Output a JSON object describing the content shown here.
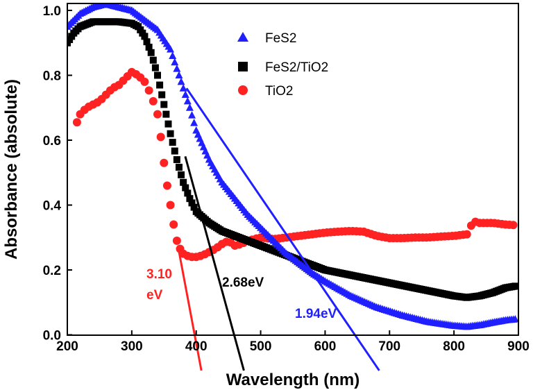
{
  "chart_data": {
    "type": "scatter",
    "xlabel": "Wavelength (nm)",
    "ylabel": "Absorbance (absolute)",
    "xlim": [
      200,
      900
    ],
    "ylim": [
      0.0,
      1.02
    ],
    "xticks": [
      "200",
      "300",
      "400",
      "500",
      "600",
      "700",
      "800",
      "900"
    ],
    "yticks": [
      "0.0",
      "0.2",
      "0.4",
      "0.6",
      "0.8",
      "1.0"
    ],
    "legend_position": "top-center",
    "series": [
      {
        "name": "FeS2",
        "color": "#1f1fff",
        "marker": "triangle",
        "points": [
          [
            200,
            0.95
          ],
          [
            220,
            0.99
          ],
          [
            240,
            1.01
          ],
          [
            260,
            1.02
          ],
          [
            280,
            1.01
          ],
          [
            300,
            1.0
          ],
          [
            320,
            0.97
          ],
          [
            340,
            0.94
          ],
          [
            360,
            0.88
          ],
          [
            370,
            0.82
          ],
          [
            380,
            0.76
          ],
          [
            390,
            0.7
          ],
          [
            400,
            0.63
          ],
          [
            420,
            0.54
          ],
          [
            440,
            0.47
          ],
          [
            460,
            0.42
          ],
          [
            480,
            0.37
          ],
          [
            500,
            0.33
          ],
          [
            520,
            0.29
          ],
          [
            540,
            0.25
          ],
          [
            560,
            0.22
          ],
          [
            580,
            0.19
          ],
          [
            600,
            0.165
          ],
          [
            640,
            0.12
          ],
          [
            680,
            0.085
          ],
          [
            720,
            0.06
          ],
          [
            760,
            0.04
          ],
          [
            800,
            0.028
          ],
          [
            820,
            0.025
          ],
          [
            840,
            0.03
          ],
          [
            860,
            0.038
          ],
          [
            880,
            0.045
          ],
          [
            895,
            0.048
          ]
        ]
      },
      {
        "name": "FeS2/TiO2",
        "color": "#000000",
        "marker": "square",
        "points": [
          [
            200,
            0.9
          ],
          [
            210,
            0.93
          ],
          [
            220,
            0.95
          ],
          [
            240,
            0.965
          ],
          [
            260,
            0.965
          ],
          [
            280,
            0.965
          ],
          [
            300,
            0.96
          ],
          [
            310,
            0.95
          ],
          [
            320,
            0.92
          ],
          [
            330,
            0.87
          ],
          [
            340,
            0.8
          ],
          [
            350,
            0.71
          ],
          [
            360,
            0.62
          ],
          [
            370,
            0.54
          ],
          [
            380,
            0.47
          ],
          [
            390,
            0.42
          ],
          [
            400,
            0.38
          ],
          [
            420,
            0.345
          ],
          [
            440,
            0.32
          ],
          [
            460,
            0.305
          ],
          [
            480,
            0.29
          ],
          [
            500,
            0.275
          ],
          [
            540,
            0.245
          ],
          [
            580,
            0.215
          ],
          [
            600,
            0.2
          ],
          [
            650,
            0.18
          ],
          [
            700,
            0.16
          ],
          [
            750,
            0.14
          ],
          [
            800,
            0.12
          ],
          [
            820,
            0.115
          ],
          [
            840,
            0.12
          ],
          [
            860,
            0.13
          ],
          [
            880,
            0.145
          ],
          [
            895,
            0.15
          ]
        ]
      },
      {
        "name": "TiO2",
        "color": "#ff2222",
        "marker": "circle",
        "points": [
          [
            215,
            0.655
          ],
          [
            220,
            0.68
          ],
          [
            230,
            0.7
          ],
          [
            240,
            0.71
          ],
          [
            250,
            0.72
          ],
          [
            260,
            0.74
          ],
          [
            270,
            0.76
          ],
          [
            280,
            0.77
          ],
          [
            290,
            0.79
          ],
          [
            300,
            0.81
          ],
          [
            310,
            0.8
          ],
          [
            320,
            0.78
          ],
          [
            330,
            0.74
          ],
          [
            340,
            0.68
          ],
          [
            345,
            0.61
          ],
          [
            350,
            0.53
          ],
          [
            355,
            0.46
          ],
          [
            360,
            0.4
          ],
          [
            365,
            0.34
          ],
          [
            370,
            0.29
          ],
          [
            375,
            0.265
          ],
          [
            380,
            0.25
          ],
          [
            390,
            0.24
          ],
          [
            400,
            0.24
          ],
          [
            410,
            0.245
          ],
          [
            420,
            0.255
          ],
          [
            430,
            0.265
          ],
          [
            440,
            0.28
          ],
          [
            450,
            0.29
          ],
          [
            460,
            0.275
          ],
          [
            470,
            0.28
          ],
          [
            480,
            0.29
          ],
          [
            490,
            0.295
          ],
          [
            500,
            0.3
          ],
          [
            520,
            0.295
          ],
          [
            540,
            0.3
          ],
          [
            560,
            0.305
          ],
          [
            580,
            0.31
          ],
          [
            600,
            0.315
          ],
          [
            620,
            0.318
          ],
          [
            640,
            0.32
          ],
          [
            660,
            0.318
          ],
          [
            680,
            0.305
          ],
          [
            700,
            0.298
          ],
          [
            720,
            0.298
          ],
          [
            740,
            0.3
          ],
          [
            760,
            0.3
          ],
          [
            780,
            0.303
          ],
          [
            800,
            0.305
          ],
          [
            820,
            0.31
          ],
          [
            830,
            0.35
          ],
          [
            840,
            0.345
          ],
          [
            860,
            0.345
          ],
          [
            880,
            0.34
          ],
          [
            895,
            0.338
          ]
        ]
      }
    ],
    "tangent_lines": [
      {
        "color": "#ff2222",
        "from": [
          372,
          0.27
        ],
        "to": [
          408,
          -0.11
        ]
      },
      {
        "color": "#000000",
        "from": [
          383,
          0.55
        ],
        "to": [
          474,
          -0.11
        ]
      },
      {
        "color": "#1f1fff",
        "from": [
          385,
          0.76
        ],
        "to": [
          684,
          -0.11
        ]
      }
    ],
    "annotations": [
      {
        "text": "3.10",
        "color": "#ff2222"
      },
      {
        "text": "eV",
        "color": "#ff2222"
      },
      {
        "text": "2.68eV",
        "color": "#000000"
      },
      {
        "text": "1.94eV",
        "color": "#1f1fff"
      }
    ]
  }
}
